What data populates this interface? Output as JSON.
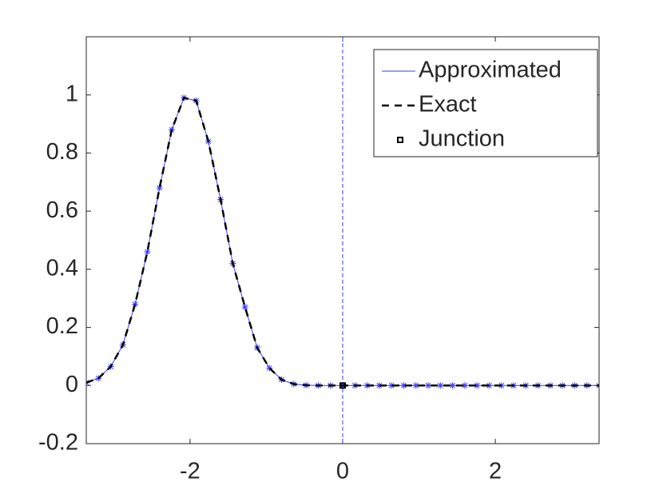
{
  "chart_data": {
    "type": "line",
    "x": [
      -3.36,
      -3.2,
      -3.04,
      -2.88,
      -2.72,
      -2.56,
      -2.4,
      -2.24,
      -2.08,
      -1.92,
      -1.76,
      -1.6,
      -1.44,
      -1.28,
      -1.12,
      -0.96,
      -0.8,
      -0.64,
      -0.48,
      -0.32,
      -0.16,
      0,
      0.16,
      0.32,
      0.48,
      0.64,
      0.8,
      0.96,
      1.12,
      1.28,
      1.44,
      1.6,
      1.76,
      1.92,
      2.08,
      2.24,
      2.4,
      2.56,
      2.72,
      2.88,
      3.04,
      3.2,
      3.36
    ],
    "series": [
      {
        "name": "Approximated",
        "color": "#3a3aff",
        "marker": "star",
        "values": [
          0.01,
          0.025,
          0.065,
          0.14,
          0.28,
          0.46,
          0.68,
          0.88,
          0.99,
          0.98,
          0.84,
          0.64,
          0.42,
          0.27,
          0.13,
          0.06,
          0.02,
          0.005,
          0.001,
          0,
          0,
          0,
          0,
          0,
          0,
          0,
          0,
          0,
          0,
          0,
          0,
          0,
          0,
          0,
          0,
          0,
          0,
          0,
          0,
          0,
          0,
          0,
          0
        ]
      },
      {
        "name": "Exact",
        "color": "#000000",
        "dash": true,
        "values": [
          0.01,
          0.025,
          0.065,
          0.14,
          0.28,
          0.46,
          0.68,
          0.88,
          0.99,
          0.98,
          0.84,
          0.64,
          0.42,
          0.27,
          0.13,
          0.06,
          0.02,
          0.005,
          0.001,
          0,
          0,
          0,
          0,
          0,
          0,
          0,
          0,
          0,
          0,
          0,
          0,
          0,
          0,
          0,
          0,
          0,
          0,
          0,
          0,
          0,
          0,
          0,
          0
        ]
      }
    ],
    "junction": {
      "name": "Junction",
      "x": 0,
      "y": 0,
      "color": "#000000"
    },
    "xlim": [
      -3.36,
      3.36
    ],
    "xticks": [
      -2,
      0,
      2
    ],
    "ylim": [
      -0.2,
      1.2
    ],
    "yticks": [
      -0.2,
      0,
      0.2,
      0.4,
      0.6,
      0.8,
      1
    ],
    "legend": "upper-right"
  }
}
